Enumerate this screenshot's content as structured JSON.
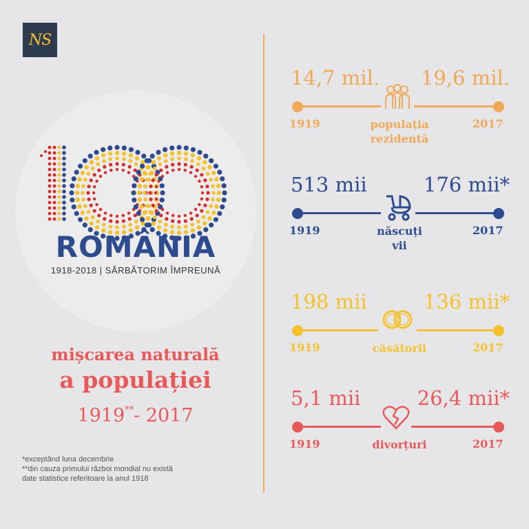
{
  "logo": {
    "text": "NS"
  },
  "emblem": {
    "number": "100",
    "word": "ROMÂNIA",
    "subtitle": "1918-2018 | SĂRBĂTORIM ÎMPREUNĂ",
    "colors": {
      "blue": "#2d4b8e",
      "yellow": "#f5c22c",
      "red": "#d52b2b"
    }
  },
  "title": {
    "line1": "mișcarea naturală",
    "line2": "a populației",
    "years_start": "1919",
    "years_mark": "**",
    "years_end": "- 2017"
  },
  "notes": {
    "n1": "*exceptând luna decembrie",
    "n2": "**din cauza primului război mondial nu există",
    "n3": "date statistice referitoare la anul 1918"
  },
  "stats": [
    {
      "from_value": "14,7 mil.",
      "to_value": "19,6 mil.",
      "from_year": "1919",
      "to_year": "2017",
      "label_line1": "populația",
      "label_line2": "rezidentă",
      "icon": "people-icon",
      "color": "#f0a957"
    },
    {
      "from_value": "513 mii",
      "to_value": "176 mii*",
      "from_year": "1919",
      "to_year": "2017",
      "label_line1": "născuți",
      "label_line2": "vii",
      "icon": "baby-carriage-icon",
      "color": "#2d4b8e"
    },
    {
      "from_value": "198 mii",
      "to_value": "136 mii*",
      "from_year": "1919",
      "to_year": "2017",
      "label_line1": "căsătorii",
      "label_line2": "",
      "icon": "wedding-rings-icon",
      "color": "#f5c22c"
    },
    {
      "from_value": "5,1 mii",
      "to_value": "26,4 mii*",
      "from_year": "1919",
      "to_year": "2017",
      "label_line1": "divorțuri",
      "label_line2": "",
      "icon": "broken-heart-icon",
      "color": "#e85a5a"
    }
  ]
}
